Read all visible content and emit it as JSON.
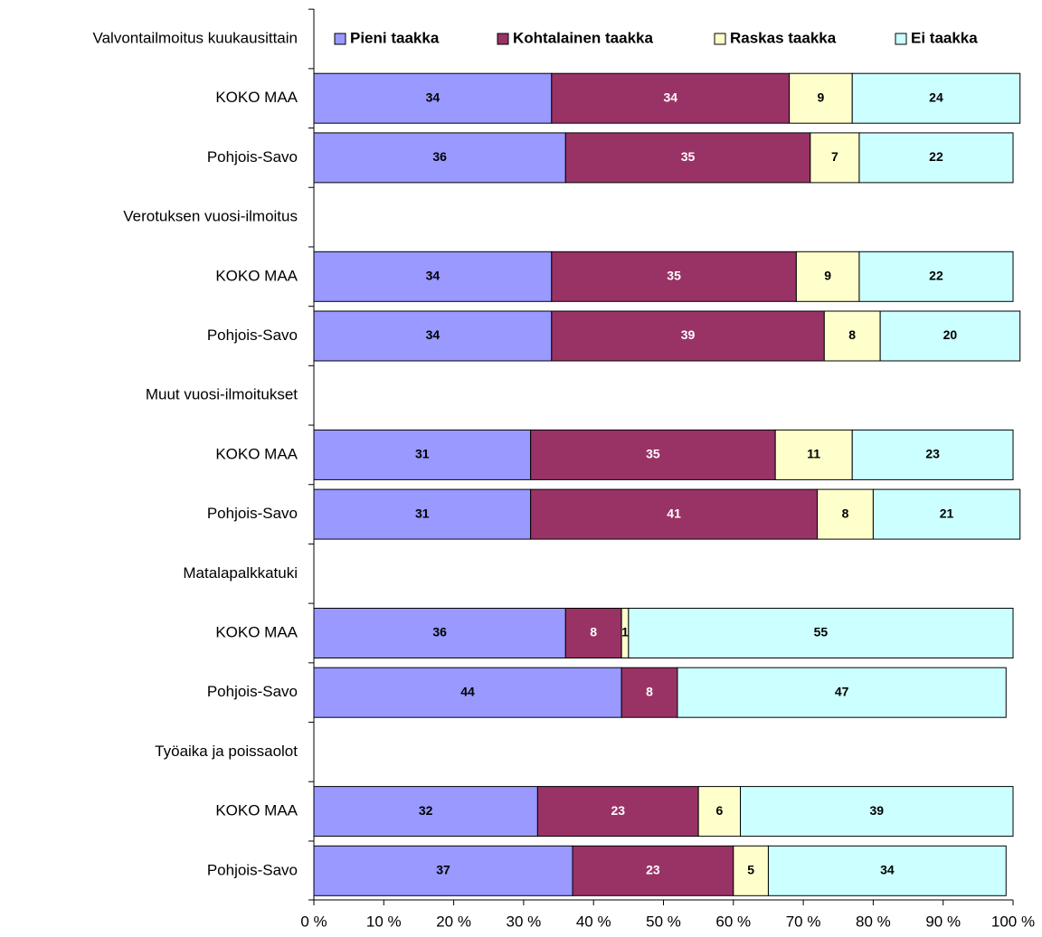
{
  "chart_data": {
    "type": "bar",
    "orientation": "horizontal",
    "stacked": true,
    "categories": [
      "Valvontailmoitus kuukausittain",
      "KOKO MAA",
      "Pohjois-Savo",
      "Verotuksen vuosi-ilmoitus",
      "KOKO MAA",
      "Pohjois-Savo",
      "Muut vuosi-ilmoitukset",
      "KOKO MAA",
      "Pohjois-Savo",
      "Matalapalkkatuki",
      "KOKO MAA",
      "Pohjois-Savo",
      "Työaika ja poissaolot",
      "KOKO MAA",
      "Pohjois-Savo"
    ],
    "series": [
      {
        "name": "Pieni taakka",
        "color": "#9999ff",
        "label_color": "#000000",
        "values": [
          null,
          34,
          36,
          null,
          34,
          34,
          null,
          31,
          31,
          null,
          36,
          44,
          null,
          32,
          37
        ]
      },
      {
        "name": "Kohtalainen taakka",
        "color": "#993366",
        "label_color": "#ffffff",
        "values": [
          null,
          34,
          35,
          null,
          35,
          39,
          null,
          35,
          41,
          null,
          8,
          8,
          null,
          23,
          23
        ]
      },
      {
        "name": "Raskas taakka",
        "color": "#ffffcc",
        "label_color": "#000000",
        "values": [
          null,
          9,
          7,
          null,
          9,
          8,
          null,
          11,
          8,
          null,
          1,
          0,
          null,
          6,
          5
        ]
      },
      {
        "name": "Ei taakka",
        "color": "#ccffff",
        "label_color": "#000000",
        "values": [
          null,
          24,
          22,
          null,
          22,
          20,
          null,
          23,
          21,
          null,
          55,
          47,
          null,
          39,
          34
        ]
      }
    ],
    "xlim": [
      0,
      100
    ],
    "xticks": [
      {
        "value": 0,
        "label": "0 %"
      },
      {
        "value": 10,
        "label": "10 %"
      },
      {
        "value": 20,
        "label": "20 %"
      },
      {
        "value": 30,
        "label": "30 %"
      },
      {
        "value": 40,
        "label": "40 %"
      },
      {
        "value": 50,
        "label": "50 %"
      },
      {
        "value": 60,
        "label": "60 %"
      },
      {
        "value": 70,
        "label": "70 %"
      },
      {
        "value": 80,
        "label": "80 %"
      },
      {
        "value": 90,
        "label": "90 %"
      },
      {
        "value": 100,
        "label": "100 %"
      }
    ],
    "legend": "top"
  }
}
